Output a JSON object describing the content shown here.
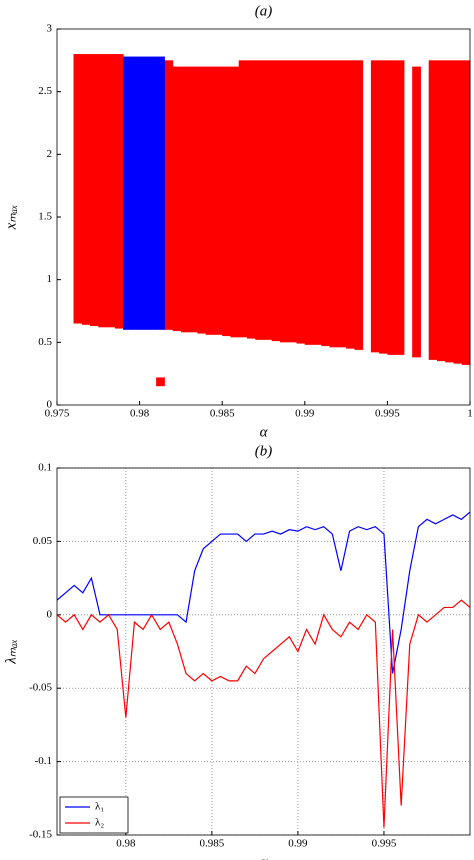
{
  "chart_data": [
    {
      "type": "bifurcation",
      "title": "(a)",
      "xlabel": "α",
      "ylabel": "xₘₐₓ",
      "xlim": [
        0.975,
        1
      ],
      "xticks": [
        0.975,
        0.98,
        0.985,
        0.99,
        0.995,
        1
      ],
      "ylim": [
        0,
        3
      ],
      "yticks": [
        0,
        0.5,
        1,
        1.5,
        2,
        2.5,
        3
      ],
      "series": [
        {
          "color": "#ff0000",
          "x": [
            0.976,
            0.9765,
            0.977,
            0.9775,
            0.978,
            0.9785,
            0.9815,
            0.982,
            0.9825,
            0.983,
            0.9835,
            0.984,
            0.9845,
            0.985,
            0.9855,
            0.986,
            0.9865,
            0.987,
            0.9875,
            0.988,
            0.9885,
            0.989,
            0.9895,
            0.99,
            0.9905,
            0.991,
            0.9915,
            0.992,
            0.9925,
            0.993,
            0.994,
            0.9945,
            0.995,
            0.9955,
            0.9965,
            0.9975,
            0.998,
            0.9985,
            0.999,
            0.9995,
            0.981
          ],
          "low": [
            0.65,
            0.64,
            0.63,
            0.62,
            0.62,
            0.61,
            0.6,
            0.59,
            0.58,
            0.58,
            0.57,
            0.56,
            0.56,
            0.55,
            0.54,
            0.54,
            0.53,
            0.52,
            0.52,
            0.51,
            0.5,
            0.5,
            0.49,
            0.48,
            0.48,
            0.47,
            0.46,
            0.46,
            0.45,
            0.44,
            0.42,
            0.41,
            0.4,
            0.4,
            0.38,
            0.36,
            0.35,
            0.34,
            0.33,
            0.32,
            0.15
          ],
          "high": [
            2.8,
            2.8,
            2.8,
            2.8,
            2.8,
            2.8,
            2.75,
            2.7,
            2.7,
            2.7,
            2.7,
            2.7,
            2.7,
            2.7,
            2.7,
            2.75,
            2.75,
            2.75,
            2.75,
            2.75,
            2.75,
            2.75,
            2.75,
            2.75,
            2.75,
            2.75,
            2.75,
            2.75,
            2.75,
            2.75,
            2.75,
            2.75,
            2.75,
            2.75,
            2.7,
            2.75,
            2.75,
            2.75,
            2.75,
            2.75,
            0.22
          ]
        },
        {
          "color": "#0000ff",
          "x": [
            0.979,
            0.9795,
            0.98,
            0.9805,
            0.981
          ],
          "low": [
            0.6,
            0.6,
            0.6,
            0.6,
            0.6
          ],
          "high": [
            2.78,
            2.78,
            2.78,
            2.78,
            2.78
          ]
        }
      ]
    },
    {
      "type": "line",
      "title": "(b)",
      "xlabel": "α",
      "ylabel": "λₘₐₓ",
      "xlim": [
        0.976,
        1
      ],
      "xticks": [
        0.98,
        0.985,
        0.99,
        0.995
      ],
      "ylim": [
        -0.15,
        0.1
      ],
      "yticks": [
        -0.15,
        -0.1,
        -0.05,
        0,
        0.05,
        0.1
      ],
      "grid": true,
      "legend": "lower left",
      "x": [
        0.976,
        0.9765,
        0.977,
        0.9775,
        0.978,
        0.9785,
        0.979,
        0.9795,
        0.98,
        0.9805,
        0.981,
        0.9815,
        0.982,
        0.9825,
        0.983,
        0.9835,
        0.984,
        0.9845,
        0.985,
        0.9855,
        0.986,
        0.9865,
        0.987,
        0.9875,
        0.988,
        0.9885,
        0.989,
        0.9895,
        0.99,
        0.9905,
        0.991,
        0.9915,
        0.992,
        0.9925,
        0.993,
        0.9935,
        0.994,
        0.9945,
        0.995,
        0.9955,
        0.996,
        0.9965,
        0.997,
        0.9975,
        0.998,
        0.9985,
        0.999,
        0.9995,
        1.0
      ],
      "series": [
        {
          "name": "λ₁",
          "color": "#0000ff",
          "values": [
            0.01,
            0.015,
            0.02,
            0.015,
            0.025,
            0,
            0,
            0,
            0,
            0,
            0,
            0,
            0,
            0,
            0,
            -0.005,
            0.03,
            0.045,
            0.05,
            0.055,
            0.055,
            0.055,
            0.05,
            0.055,
            0.055,
            0.057,
            0.055,
            0.058,
            0.057,
            0.06,
            0.058,
            0.06,
            0.055,
            0.03,
            0.057,
            0.06,
            0.058,
            0.06,
            0.055,
            -0.04,
            -0.01,
            0.03,
            0.06,
            0.065,
            0.062,
            0.065,
            0.068,
            0.065,
            0.07
          ]
        },
        {
          "name": "λ₂",
          "color": "#ff0000",
          "values": [
            0,
            -0.005,
            0,
            -0.01,
            0,
            -0.005,
            0,
            -0.01,
            -0.07,
            -0.005,
            -0.01,
            0,
            -0.01,
            -0.005,
            -0.02,
            -0.04,
            -0.045,
            -0.04,
            -0.045,
            -0.042,
            -0.045,
            -0.045,
            -0.035,
            -0.04,
            -0.03,
            -0.025,
            -0.02,
            -0.015,
            -0.025,
            -0.01,
            -0.02,
            0,
            -0.01,
            -0.015,
            -0.005,
            -0.01,
            0,
            -0.005,
            -0.145,
            -0.01,
            -0.13,
            -0.02,
            0,
            -0.005,
            0,
            0.005,
            0.005,
            0.01,
            0.005
          ]
        }
      ]
    }
  ]
}
